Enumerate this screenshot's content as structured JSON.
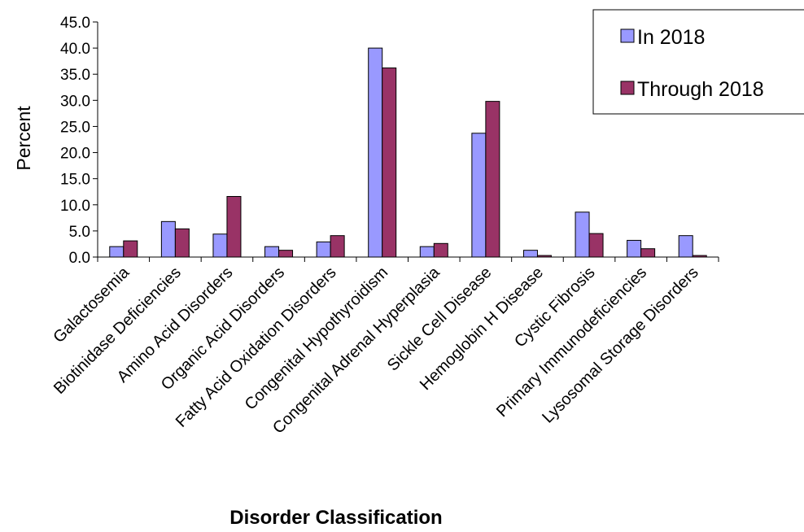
{
  "chart_data": {
    "type": "bar",
    "title": "",
    "xlabel": "Disorder Classification",
    "ylabel": "Percent",
    "ylim": [
      0,
      45
    ],
    "yticks": [
      "0.0",
      "5.0",
      "10.0",
      "15.0",
      "20.0",
      "25.0",
      "30.0",
      "35.0",
      "40.0",
      "45.0"
    ],
    "grid": false,
    "legend_position": "top-right",
    "categories": [
      "Galactosemia",
      "Biotinidase Deficiencies",
      "Amino Acid Disorders",
      "Organic Acid Disorders",
      "Fatty Acid Oxidation Disorders",
      "Congenital Hypothyroidism",
      "Congenital Adrenal Hyperplasia",
      "Sickle Cell Disease",
      "Hemoglobin H Disease",
      "Cystic Fibrosis",
      "Primary Immunodeficiencies",
      "Lysosomal Storage Disorders"
    ],
    "series": [
      {
        "name": "In 2018",
        "color": "#9999FF",
        "values": [
          2.0,
          6.8,
          4.4,
          2.0,
          2.9,
          40.0,
          2.0,
          23.7,
          1.3,
          8.6,
          3.2,
          4.1
        ]
      },
      {
        "name": "Through 2018",
        "color": "#993366",
        "values": [
          3.1,
          5.4,
          11.6,
          1.3,
          4.1,
          36.2,
          2.6,
          29.8,
          0.3,
          4.5,
          1.6,
          0.3
        ]
      }
    ]
  }
}
